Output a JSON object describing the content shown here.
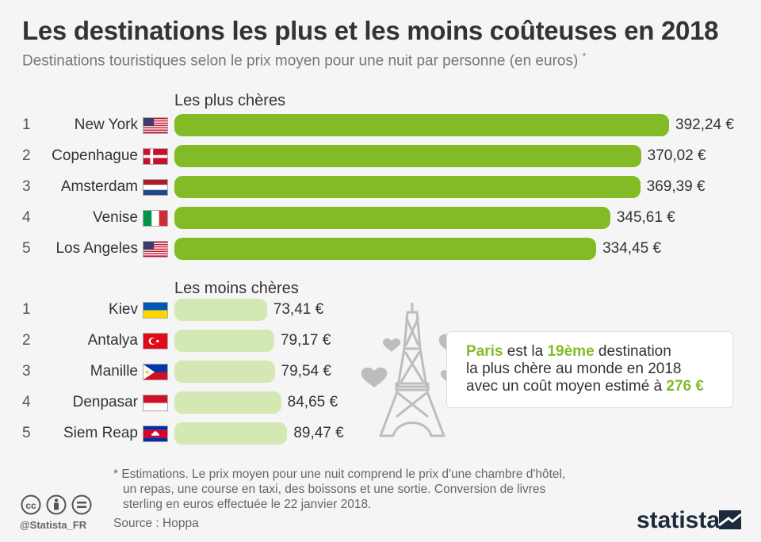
{
  "header": {
    "title": "Les destinations les plus et les moins coûteuses en 2018",
    "subtitle": "Destinations touristiques selon le prix moyen pour une nuit par personne (en euros)",
    "subtitle_mark": "*"
  },
  "chart_data": [
    {
      "type": "bar",
      "orientation": "horizontal",
      "title": "Les plus chères",
      "categories": [
        "New York",
        "Copenhague",
        "Amsterdam",
        "Venise",
        "Los Angeles"
      ],
      "ranks": [
        "1",
        "2",
        "3",
        "4",
        "5"
      ],
      "values": [
        392.24,
        370.02,
        369.39,
        345.61,
        334.45
      ],
      "value_labels": [
        "392,24 €",
        "370,02 €",
        "369,39 €",
        "345,61 €",
        "334,45 €"
      ],
      "flags": [
        "us-flag-icon",
        "denmark-flag-icon",
        "netherlands-flag-icon",
        "italy-flag-icon",
        "us-flag-icon"
      ],
      "color": "#83bb26"
    },
    {
      "type": "bar",
      "orientation": "horizontal",
      "title": "Les moins chères",
      "categories": [
        "Kiev",
        "Antalya",
        "Manille",
        "Denpasar",
        "Siem Reap"
      ],
      "ranks": [
        "1",
        "2",
        "3",
        "4",
        "5"
      ],
      "values": [
        73.41,
        79.17,
        79.54,
        84.65,
        89.47
      ],
      "value_labels": [
        "73,41 €",
        "79,17 €",
        "79,54 €",
        "84,65 €",
        "89,47 €"
      ],
      "flags": [
        "ukraine-flag-icon",
        "turkey-flag-icon",
        "philippines-flag-icon",
        "indonesia-flag-icon",
        "cambodia-flag-icon"
      ],
      "color": "#d3e8b3"
    }
  ],
  "callout": {
    "city": "Paris",
    "text1": " est la ",
    "rank": "19ème",
    "text2": " destination",
    "line2": "la plus chère au monde en 2018",
    "line3": "avec un coût moyen estimé à ",
    "cost": "276 €",
    "icon": "eiffel-tower-icon"
  },
  "footer": {
    "footnote_lines": [
      "* Estimations. Le prix moyen pour une nuit comprend le prix d'une chambre d'hôtel,",
      "  un repas, une course en taxi, des boissons et une sortie. Conversion de livres",
      "  sterling en euros effectuée le 22 janvier 2018."
    ],
    "source": "Source : Hoppa",
    "handle": "@Statista_FR",
    "brand": "statista",
    "license_icons": [
      "cc-icon",
      "by-icon",
      "nd-icon"
    ]
  },
  "colors": {
    "accent": "#83bb26",
    "light": "#d3e8b3",
    "text": "#333333",
    "muted": "#777777",
    "background": "#f5f5f5"
  }
}
